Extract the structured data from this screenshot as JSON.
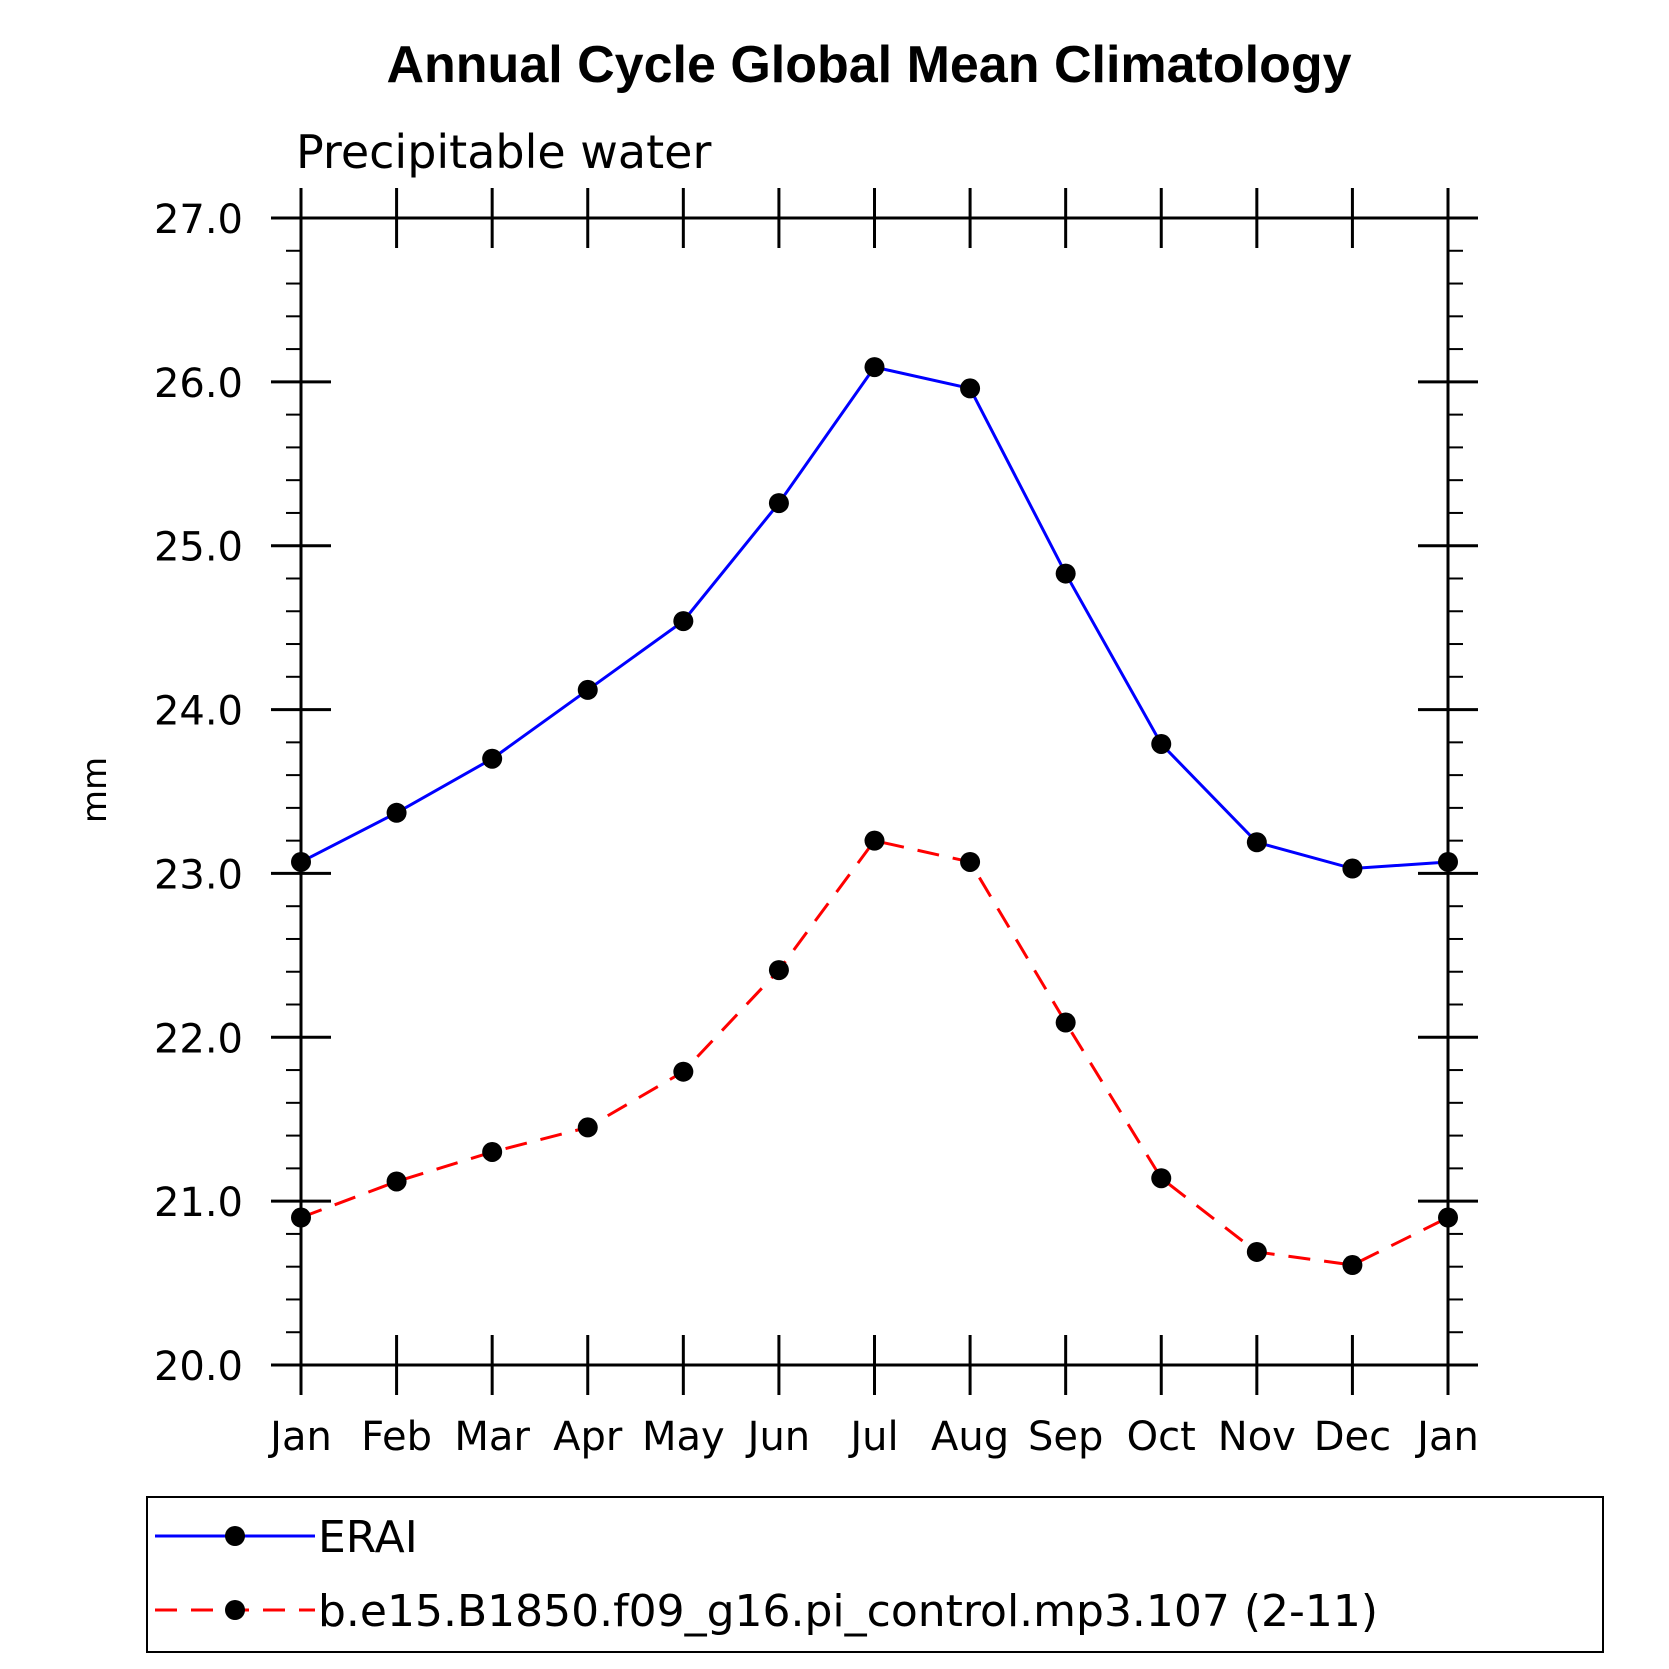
{
  "chart_data": {
    "type": "line",
    "title": "Annual Cycle Global Mean Climatology",
    "subtitle": "Precipitable water",
    "xlabel": "",
    "ylabel": "mm",
    "categories": [
      "Jan",
      "Feb",
      "Mar",
      "Apr",
      "May",
      "Jun",
      "Jul",
      "Aug",
      "Sep",
      "Oct",
      "Nov",
      "Dec",
      "Jan"
    ],
    "ylim": [
      20.0,
      27.0
    ],
    "yticks": [
      "20.0",
      "21.0",
      "22.0",
      "23.0",
      "24.0",
      "25.0",
      "26.0",
      "27.0"
    ],
    "yminor_step": 0.2,
    "legend_position": "bottom",
    "series": [
      {
        "name": "ERAI",
        "color": "#0000ff",
        "dash": "solid",
        "marker": "filled-circle",
        "values": [
          23.07,
          23.37,
          23.7,
          24.12,
          24.54,
          25.26,
          26.09,
          25.96,
          24.83,
          23.79,
          23.19,
          23.03,
          23.07
        ]
      },
      {
        "name": "b.e15.B1850.f09_g16.pi_control.mp3.107 (2-11)",
        "color": "#ff0000",
        "dash": "dashed",
        "marker": "filled-circle",
        "values": [
          20.9,
          21.12,
          21.3,
          21.45,
          21.79,
          22.41,
          23.2,
          23.07,
          22.09,
          21.14,
          20.69,
          20.61,
          20.9
        ]
      }
    ]
  }
}
